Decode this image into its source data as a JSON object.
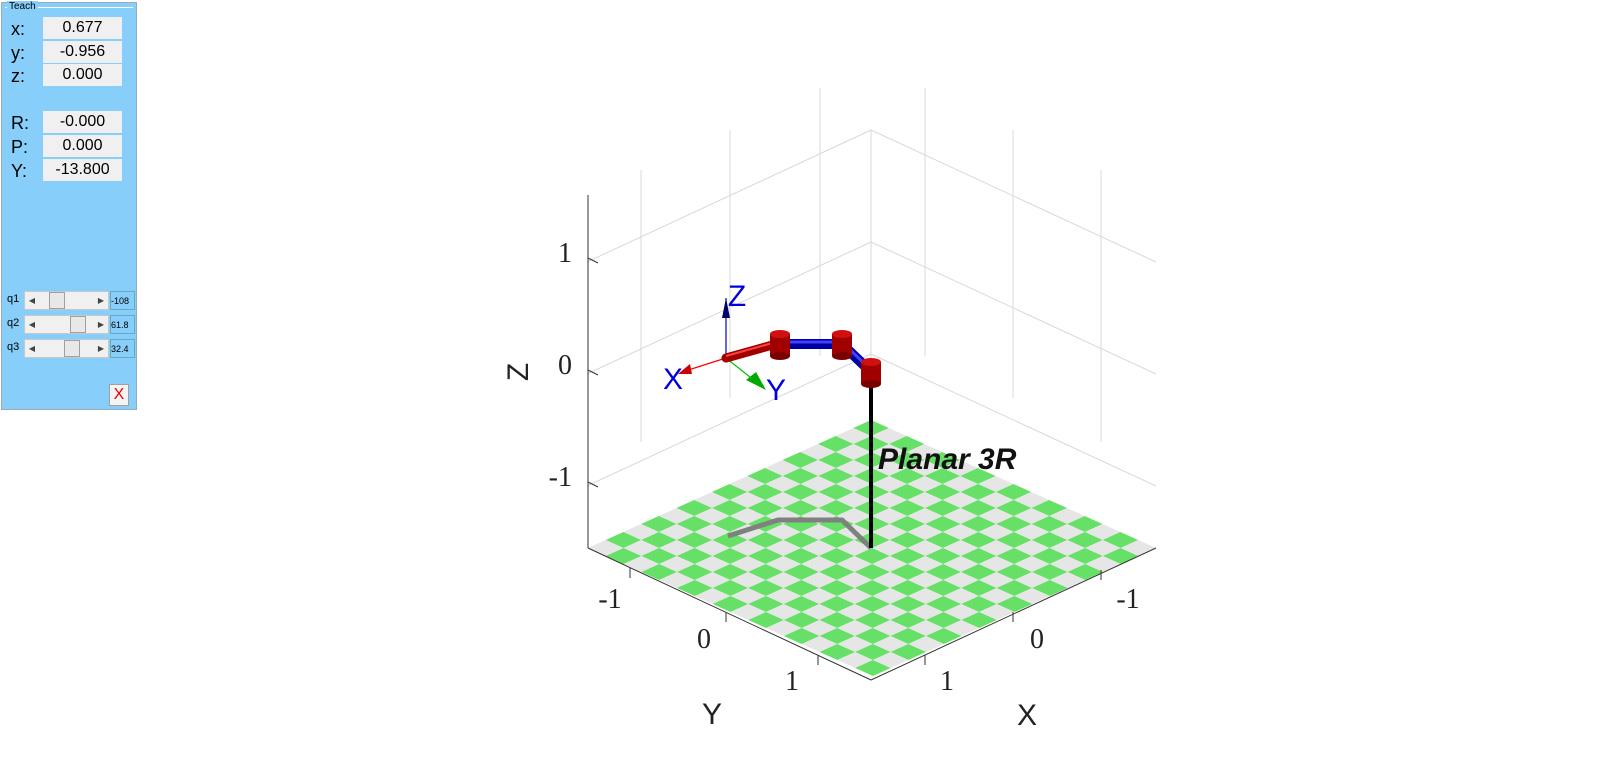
{
  "teach": {
    "title": "Teach",
    "pose": [
      {
        "label": "x:",
        "value": "0.677"
      },
      {
        "label": "y:",
        "value": "-0.956"
      },
      {
        "label": "z:",
        "value": "0.000"
      }
    ],
    "rpy": [
      {
        "label": "R:",
        "value": "-0.000"
      },
      {
        "label": "P:",
        "value": "0.000"
      },
      {
        "label": "Y:",
        "value": "-13.800"
      }
    ],
    "joints": [
      {
        "label": "q1",
        "value": "-108",
        "fraction": 0.25
      },
      {
        "label": "q2",
        "value": "61.8",
        "fraction": 0.8
      },
      {
        "label": "q3",
        "value": "32.4",
        "fraction": 0.64
      }
    ],
    "close_label": "X"
  },
  "plot": {
    "xlabel": "X",
    "ylabel": "Y",
    "zlabel": "Z",
    "x_ticks": [
      "-1",
      "0",
      "1"
    ],
    "y_ticks": [
      "-1",
      "0",
      "1"
    ],
    "z_ticks": [
      "1",
      "0",
      "-1"
    ],
    "robot_name": "Planar 3R",
    "frame_labels": {
      "x": "X",
      "y": "Y",
      "z": "Z"
    },
    "colors": {
      "floor_a": "#66e066",
      "floor_b": "#e6e6e6",
      "link": "#1414e6",
      "joint": "#b00000",
      "frame_x": "#ff0000",
      "frame_y": "#00c000",
      "frame_z": "#0000cc",
      "label_blue": "#0000dd",
      "shadow": "#808080"
    }
  }
}
